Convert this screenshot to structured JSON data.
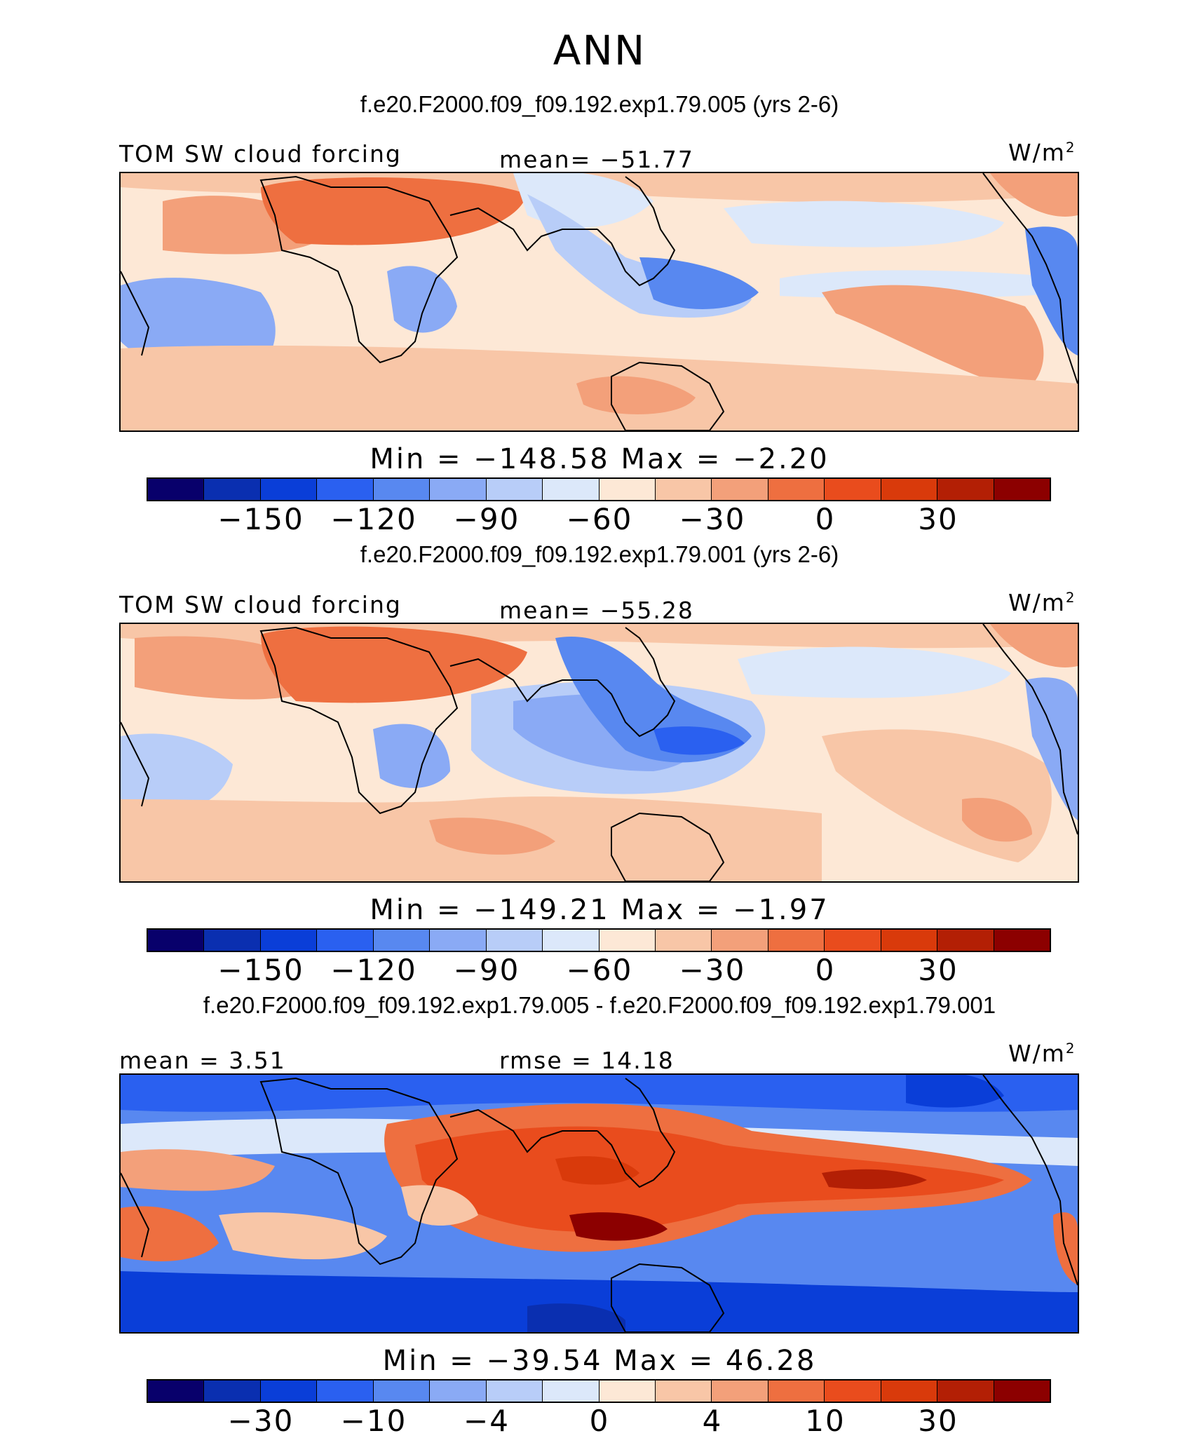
{
  "season": "ANN",
  "variable_label": "TOM SW cloud forcing",
  "units_base": "W/m",
  "units_exp": "2",
  "palette": [
    "#08006b",
    "#0a2fb0",
    "#0a3ed8",
    "#2a60f0",
    "#5888f0",
    "#8aaaf5",
    "#b8cdf8",
    "#dce8fa",
    "#fde8d6",
    "#f8c6a7",
    "#f3a07a",
    "#ee6f40",
    "#e94c1d",
    "#d93a0b",
    "#b31f05",
    "#8c0000"
  ],
  "panels": [
    {
      "title": "f.e20.F2000.f09_f09.192.exp1.79.005 (yrs 2-6)",
      "stat_label": "mean= −51.77",
      "minmax": "Min = −148.58  Max =   −2.20",
      "colorbar_ticks": [
        "−150",
        "−120",
        "−90",
        "−60",
        "−30",
        "0",
        "30"
      ]
    },
    {
      "title": "f.e20.F2000.f09_f09.192.exp1.79.001 (yrs 2-6)",
      "stat_label": "mean= −55.28",
      "minmax": "Min = −149.21  Max =   −1.97",
      "colorbar_ticks": [
        "−150",
        "−120",
        "−90",
        "−60",
        "−30",
        "0",
        "30"
      ]
    },
    {
      "title": "f.e20.F2000.f09_f09.192.exp1.79.005 - f.e20.F2000.f09_f09.192.exp1.79.001",
      "mean_label": "mean =   3.51",
      "rmse_label": "rmse =  14.18",
      "minmax": "Min = −39.54  Max =  46.28",
      "colorbar_ticks": [
        "−30",
        "−10",
        "−4",
        "0",
        "4",
        "10",
        "30"
      ]
    }
  ]
}
